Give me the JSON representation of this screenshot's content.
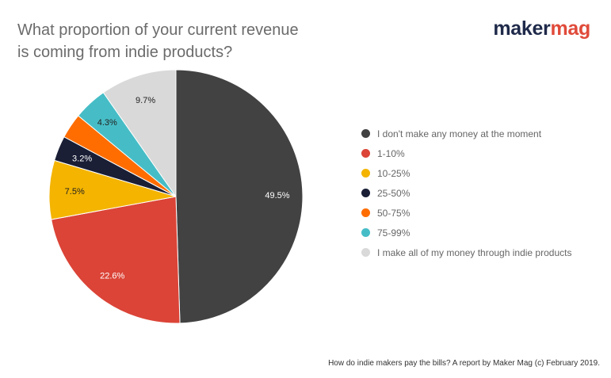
{
  "brand": {
    "part1": "maker",
    "part2": "mag",
    "color1": "#1f2a4a",
    "color2": "#e04a3a"
  },
  "footer": "How do indie makers pay the bills? A report by Maker Mag (c) February 2019.",
  "chart_data": {
    "type": "pie",
    "title_lines": [
      "What proportion of your current revenue",
      "is coming from indie products?"
    ],
    "legend_position": "right",
    "slices": [
      {
        "label": "I don't make any money at the moment",
        "value": 49.5,
        "display": "49.5%",
        "color": "#424242"
      },
      {
        "label": "1-10%",
        "value": 22.6,
        "display": "22.6%",
        "color": "#db4437"
      },
      {
        "label": "10-25%",
        "value": 7.5,
        "display": "7.5%",
        "color": "#f4b400"
      },
      {
        "label": "25-50%",
        "value": 3.2,
        "display": "3.2%",
        "color": "#1a1f36"
      },
      {
        "label": "50-75%",
        "value": 3.2,
        "display": "",
        "color": "#ff6d00"
      },
      {
        "label": "75-99%",
        "value": 4.3,
        "display": "4.3%",
        "color": "#46bdc6"
      },
      {
        "label": "I make all of my money through indie products",
        "value": 9.7,
        "display": "9.7%",
        "color": "#d9d9d9"
      }
    ]
  }
}
